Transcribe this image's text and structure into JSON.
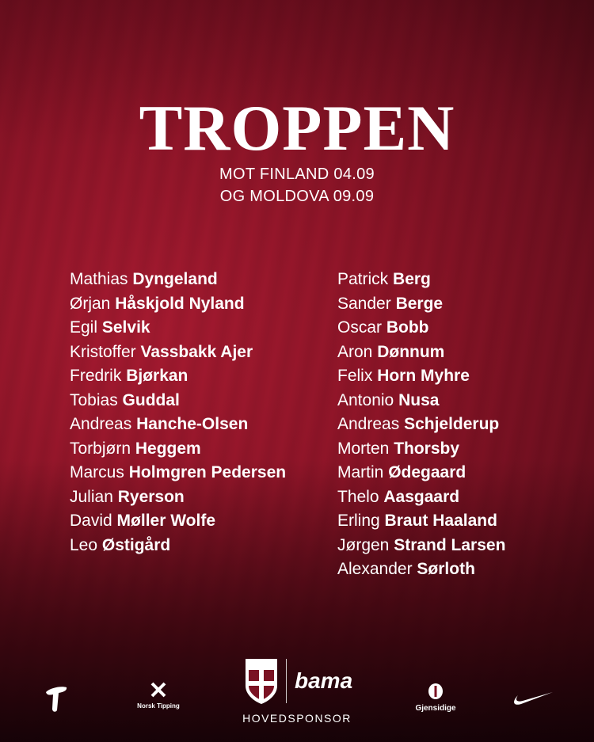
{
  "header": {
    "title": "TROPPEN",
    "subtitle_line1": "MOT FINLAND 04.09",
    "subtitle_line2": "OG MOLDOVA 09.09"
  },
  "squad": {
    "left": [
      {
        "first": "Mathias",
        "last": "Dyngeland"
      },
      {
        "first": "Ørjan",
        "last": "Håskjold Nyland"
      },
      {
        "first": "Egil",
        "last": "Selvik"
      },
      {
        "first": "Kristoffer",
        "last": "Vassbakk Ajer"
      },
      {
        "first": "Fredrik",
        "last": "Bjørkan"
      },
      {
        "first": "Tobias",
        "last": "Guddal"
      },
      {
        "first": "Andreas",
        "last": "Hanche-Olsen"
      },
      {
        "first": "Torbjørn",
        "last": "Heggem"
      },
      {
        "first": "Marcus",
        "last": "Holmgren Pedersen"
      },
      {
        "first": "Julian",
        "last": "Ryerson"
      },
      {
        "first": "David",
        "last": "Møller Wolfe"
      },
      {
        "first": "Leo",
        "last": "Østigård"
      }
    ],
    "right": [
      {
        "first": "Patrick",
        "last": "Berg"
      },
      {
        "first": "Sander",
        "last": "Berge"
      },
      {
        "first": "Oscar",
        "last": "Bobb"
      },
      {
        "first": "Aron",
        "last": "Dønnum"
      },
      {
        "first": "Felix",
        "last": "Horn Myhre"
      },
      {
        "first": "Antonio",
        "last": "Nusa"
      },
      {
        "first": "Andreas",
        "last": "Schjelderup"
      },
      {
        "first": "Morten",
        "last": "Thorsby"
      },
      {
        "first": "Martin",
        "last": "Ødegaard"
      },
      {
        "first": "Thelo",
        "last": "Aasgaard"
      },
      {
        "first": "Erling",
        "last": "Braut Haaland"
      },
      {
        "first": "Jørgen",
        "last": "Strand Larsen"
      },
      {
        "first": "Alexander",
        "last": "Sørloth"
      }
    ]
  },
  "sponsors": {
    "norsk_tipping": "Norsk Tipping",
    "bama": "bama",
    "main_sponsor_label": "HOVEDSPONSOR",
    "gjensidige": "Gjensidige",
    "icons": [
      "telenor-logo",
      "norsk-tipping-logo",
      "nff-crest",
      "bama-logo",
      "gjensidige-logo",
      "nike-swoosh"
    ]
  },
  "colors": {
    "background": "#8c1427",
    "text": "#ffffff"
  }
}
